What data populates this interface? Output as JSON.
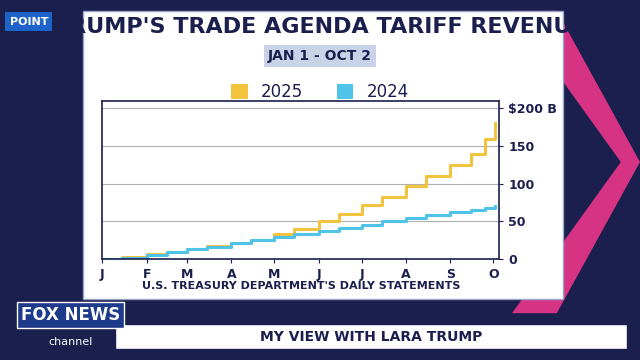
{
  "chart_data": {
    "type": "step",
    "title": "TRUMP'S TRADE AGENDA TARIFF REVENUE",
    "subtitle": "JAN 1 - OCT 2",
    "source": "U.S. TREASURY DEPARTMENT'S DAILY STATEMENTS",
    "x": [
      1,
      15,
      32,
      46,
      60,
      74,
      91,
      105,
      121,
      135,
      152,
      166,
      182,
      196,
      213,
      227,
      244,
      258,
      268,
      275
    ],
    "series": [
      {
        "name": "2025",
        "color": "#f2c33c",
        "line_style": "solid",
        "values": [
          0,
          3,
          7,
          10,
          14,
          17,
          22,
          26,
          33,
          40,
          50,
          60,
          72,
          83,
          97,
          110,
          125,
          140,
          160,
          180
        ]
      },
      {
        "name": "2024",
        "color": "#4fc3e8",
        "line_style": "solid",
        "values": [
          0,
          2,
          6,
          9,
          13,
          16,
          21,
          25,
          29,
          33,
          38,
          42,
          46,
          50,
          54,
          58,
          62,
          65,
          68,
          70
        ]
      }
    ],
    "xlim": [
      1,
      278
    ],
    "xticks": [
      {
        "value": 1,
        "label": "J"
      },
      {
        "value": 32,
        "label": "F"
      },
      {
        "value": 60,
        "label": "M"
      },
      {
        "value": 91,
        "label": "A"
      },
      {
        "value": 121,
        "label": "M"
      },
      {
        "value": 152,
        "label": "J"
      },
      {
        "value": 182,
        "label": "J"
      },
      {
        "value": 213,
        "label": "A"
      },
      {
        "value": 244,
        "label": "S"
      },
      {
        "value": 274,
        "label": "O"
      }
    ],
    "ylim": [
      0,
      210
    ],
    "yticks": [
      0,
      50,
      100,
      150,
      {
        "value": 200,
        "label": "$200 B"
      }
    ],
    "grid": true,
    "legend": "upper center"
  },
  "screen": {
    "bug": "POINT",
    "logo": "FOX NEWS",
    "logo_sub": "channel",
    "banner": "MY VIEW WITH LARA TRUMP"
  }
}
